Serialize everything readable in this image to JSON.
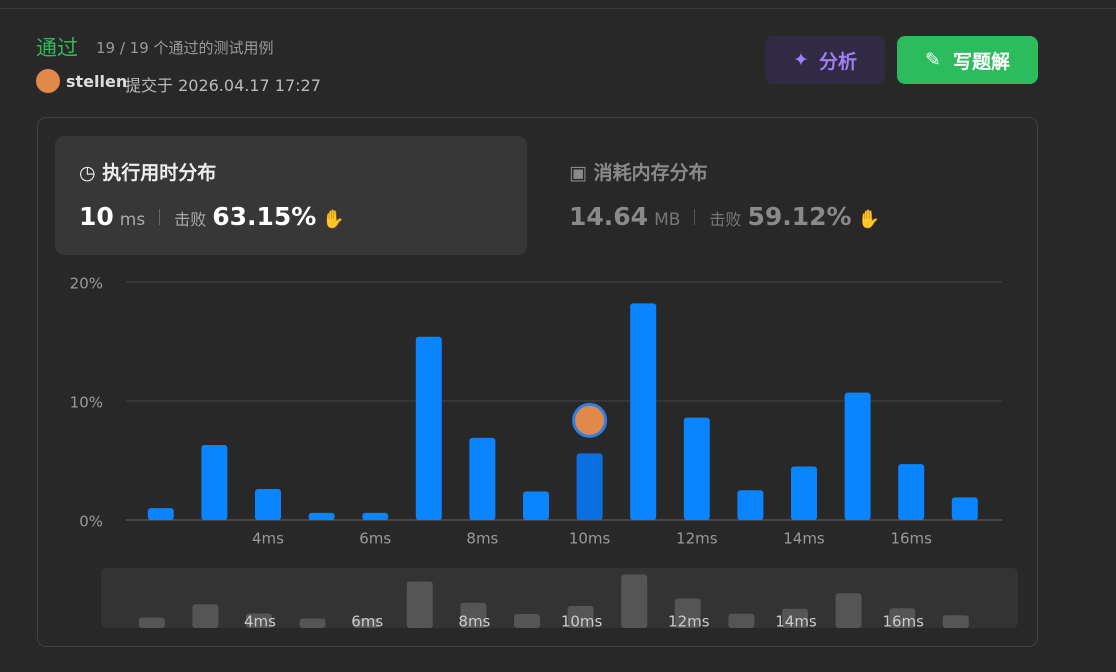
{
  "header": {
    "status": "通过",
    "cases": "19 / 19 个通过的测试用例",
    "user": "stellen",
    "submitted": "提交于 2026.04.17 17:27",
    "analyze_button": "分析",
    "solution_button": "写题解"
  },
  "runtime": {
    "title": "执行用时分布",
    "value": "10",
    "unit": "ms",
    "beats_label": "击败",
    "beats": "63.15%"
  },
  "memory": {
    "title": "消耗内存分布",
    "value": "14.64",
    "unit": "MB",
    "beats_label": "击败",
    "beats": "59.12%"
  },
  "chart_data": {
    "type": "bar",
    "categories": [
      null,
      null,
      "4ms",
      null,
      "6ms",
      null,
      "8ms",
      null,
      "10ms",
      null,
      "12ms",
      null,
      "14ms",
      null,
      "16ms",
      null
    ],
    "values": [
      1.0,
      6.3,
      2.6,
      0.6,
      0.6,
      15.4,
      6.9,
      2.4,
      5.6,
      18.2,
      8.6,
      2.5,
      4.5,
      10.7,
      4.7,
      1.9
    ],
    "colors": [
      "#0a84ff",
      "#0a84ff",
      "#0a84ff",
      "#0a84ff",
      "#0a84ff",
      "#0a84ff",
      "#0a84ff",
      "#0a84ff",
      "#0a6fe0",
      "#0a84ff",
      "#0a84ff",
      "#0a84ff",
      "#0a84ff",
      "#0a84ff",
      "#0a84ff",
      "#0a84ff"
    ],
    "ylim": [
      0,
      20
    ],
    "yticks": [
      {
        "value": 0,
        "label": "0%"
      },
      {
        "value": 10,
        "label": "10%"
      },
      {
        "value": 20,
        "label": "20%"
      }
    ],
    "grid": true
  }
}
